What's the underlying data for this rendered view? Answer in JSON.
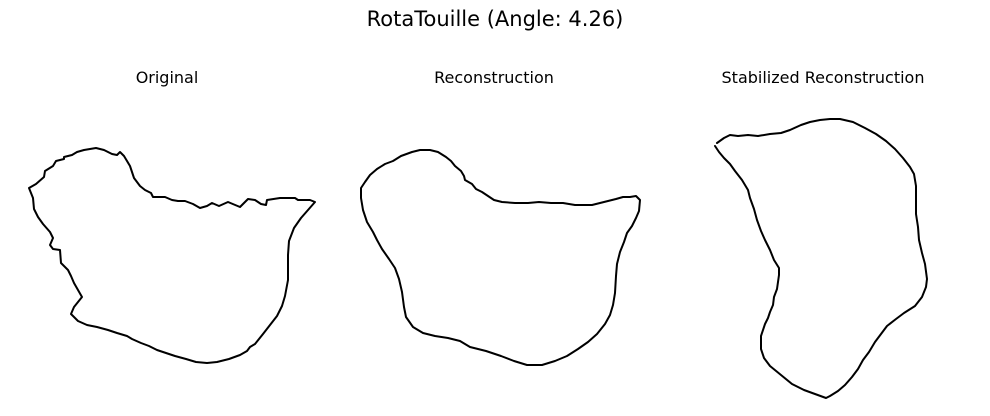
{
  "figure": {
    "title": "RotaTouille (Angle: 4.26)"
  },
  "panels": [
    {
      "title": "Original"
    },
    {
      "title": "Reconstruction"
    },
    {
      "title": "Stabilized Reconstruction"
    }
  ],
  "style": {
    "line_color": "#000000",
    "background": "#ffffff"
  }
}
